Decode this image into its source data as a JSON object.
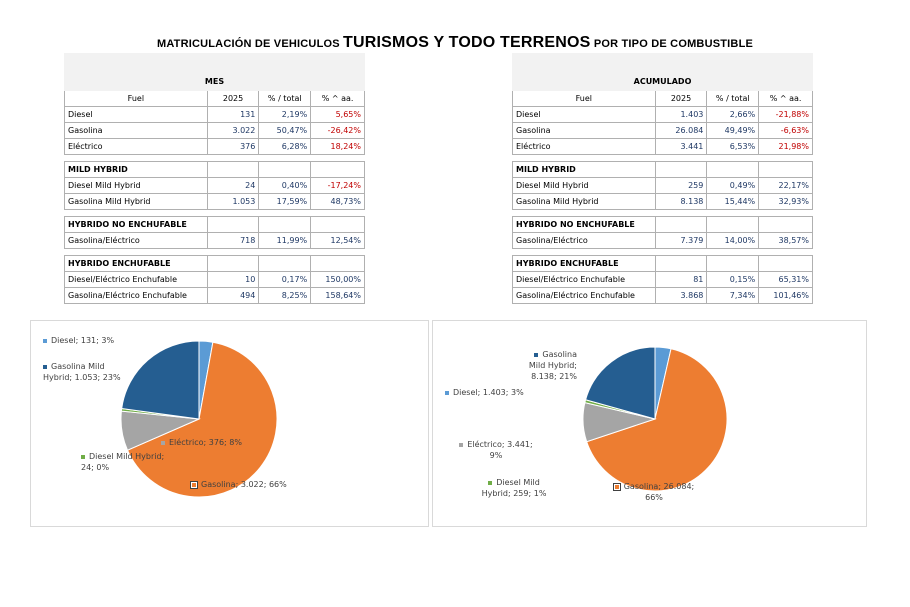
{
  "title": {
    "prefix": "MATRICULACIÓN DE VEHICULOS ",
    "main": "TURISMOS Y TODO TERRENOS",
    "suffix": " POR TIPO DE COMBUSTIBLE"
  },
  "colors": {
    "diesel": "#5b9bd5",
    "gasolina": "#ed7d31",
    "electrico": "#a5a5a5",
    "diesel_mild": "#70ad47",
    "gasolina_mild": "#255e91",
    "negative": "#c00000",
    "positive": "#1f3864"
  },
  "mes": {
    "title": "MES",
    "headers": [
      "Fuel",
      "2025",
      "% / total",
      "% ^ aa."
    ],
    "rows": [
      {
        "fuel": "Diesel",
        "v": "131",
        "pct": "2,19%",
        "var": "5,65%",
        "neg": true
      },
      {
        "fuel": "Gasolina",
        "v": "3.022",
        "pct": "50,47%",
        "var": "-26,42%",
        "neg": true
      },
      {
        "fuel": "Eléctrico",
        "v": "376",
        "pct": "6,28%",
        "var": "18,24%",
        "neg": true
      }
    ],
    "mild_title": "MILD HYBRID",
    "mild": [
      {
        "fuel": "Diesel Mild Hybrid",
        "v": "24",
        "pct": "0,40%",
        "var": "-17,24%",
        "neg": true
      },
      {
        "fuel": "Gasolina Mild Hybrid",
        "v": "1.053",
        "pct": "17,59%",
        "var": "48,73%",
        "neg": false
      }
    ],
    "hne_title": "HYBRIDO NO ENCHUFABLE",
    "hne": [
      {
        "fuel": "Gasolina/Eléctrico",
        "v": "718",
        "pct": "11,99%",
        "var": "12,54%",
        "neg": false
      }
    ],
    "he_title": "HYBRIDO ENCHUFABLE",
    "he": [
      {
        "fuel": "Diesel/Eléctrico Enchufable",
        "v": "10",
        "pct": "0,17%",
        "var": "150,00%",
        "neg": false
      },
      {
        "fuel": "Gasolina/Eléctrico Enchufable",
        "v": "494",
        "pct": "8,25%",
        "var": "158,64%",
        "neg": false
      }
    ]
  },
  "acumulado": {
    "title": "ACUMULADO",
    "headers": [
      "Fuel",
      "2025",
      "% / total",
      "% ^ aa."
    ],
    "rows": [
      {
        "fuel": "Diesel",
        "v": "1.403",
        "pct": "2,66%",
        "var": "-21,88%",
        "neg": true
      },
      {
        "fuel": "Gasolina",
        "v": "26.084",
        "pct": "49,49%",
        "var": "-6,63%",
        "neg": true
      },
      {
        "fuel": "Eléctrico",
        "v": "3.441",
        "pct": "6,53%",
        "var": "21,98%",
        "neg": true
      }
    ],
    "mild_title": "MILD HYBRID",
    "mild": [
      {
        "fuel": "Diesel Mild Hybrid",
        "v": "259",
        "pct": "0,49%",
        "var": "22,17%",
        "neg": false
      },
      {
        "fuel": "Gasolina Mild Hybrid",
        "v": "8.138",
        "pct": "15,44%",
        "var": "32,93%",
        "neg": false
      }
    ],
    "hne_title": "HYBRIDO NO ENCHUFABLE",
    "hne": [
      {
        "fuel": "Gasolina/Eléctrico",
        "v": "7.379",
        "pct": "14,00%",
        "var": "38,57%",
        "neg": false
      }
    ],
    "he_title": "HYBRIDO ENCHUFABLE",
    "he": [
      {
        "fuel": "Diesel/Eléctrico Enchufable",
        "v": "81",
        "pct": "0,15%",
        "var": "65,31%",
        "neg": false
      },
      {
        "fuel": "Gasolina/Eléctrico Enchufable",
        "v": "3.868",
        "pct": "7,34%",
        "var": "101,46%",
        "neg": false
      }
    ]
  },
  "chart_data": [
    {
      "type": "pie",
      "labels": [
        "Diesel",
        "Gasolina",
        "Eléctrico",
        "Diesel Mild Hybrid",
        "Gasolina Mild Hybrid"
      ],
      "values": [
        131,
        3022,
        376,
        24,
        1053
      ],
      "data_labels": [
        "Diesel; 131; 3%",
        "Gasolina; 3.022; 66%",
        "Eléctrico; 376; 8%",
        "Diesel Mild Hybrid; 24; 0%",
        "Gasolina Mild Hybrid; 1.053; 23%"
      ],
      "colors": [
        "#5b9bd5",
        "#ed7d31",
        "#a5a5a5",
        "#70ad47",
        "#255e91"
      ]
    },
    {
      "type": "pie",
      "labels": [
        "Diesel",
        "Gasolina",
        "Eléctrico",
        "Diesel Mild Hybrid",
        "Gasolina Mild Hybrid"
      ],
      "values": [
        1403,
        26084,
        3441,
        259,
        8138
      ],
      "data_labels": [
        "Diesel; 1.403; 3%",
        "Gasolina; 26.084; 66%",
        "Eléctrico; 3.441; 9%",
        "Diesel Mild Hybrid; 259; 1%",
        "Gasolina Mild Hybrid; 8.138; 21%"
      ],
      "colors": [
        "#5b9bd5",
        "#ed7d31",
        "#a5a5a5",
        "#70ad47",
        "#255e91"
      ]
    }
  ]
}
